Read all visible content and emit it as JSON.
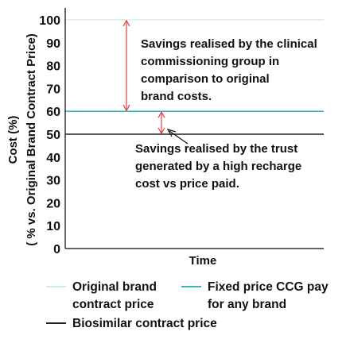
{
  "chart_data": {
    "type": "line",
    "ylabel_line1": "Cost (%)",
    "ylabel_line2": "( % vs. Original Brand Contract Price)",
    "xlabel": "Time",
    "ylim": [
      0,
      100
    ],
    "yticks": [
      0,
      10,
      20,
      30,
      40,
      50,
      60,
      70,
      80,
      90,
      100
    ],
    "series": [
      {
        "name_lines": [
          "Original brand",
          "contract price"
        ],
        "y": 100,
        "color": "#cfecea"
      },
      {
        "name_lines": [
          "Fixed price CCG pay",
          "for any brand"
        ],
        "y": 60,
        "color": "#39b3c9"
      },
      {
        "name_lines": [
          "Biosimilar contract price"
        ],
        "y": 50,
        "color": "#1c2430"
      }
    ],
    "annotations": [
      {
        "from": 60,
        "to": 100,
        "color": "#e0413a",
        "lines": [
          "Savings realised by the clinical",
          "commissioning group in",
          "comparison to original",
          "brand costs."
        ]
      },
      {
        "from": 50,
        "to": 60,
        "color": "#e0413a",
        "lines": [
          "Savings realised by the trust",
          "generated by a high recharge",
          "cost vs price paid."
        ]
      }
    ]
  }
}
